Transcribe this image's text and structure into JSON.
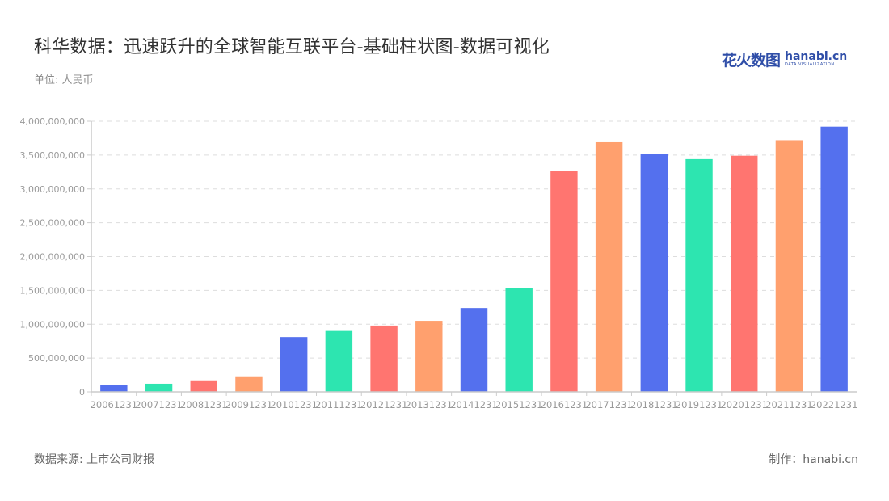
{
  "header": {
    "title": "科华数据：迅速跃升的全球智能互联平台-基础柱状图-数据可视化",
    "unit": "单位: 人民币",
    "logo_cn": "花火数图",
    "logo_en": "hanabi.cn",
    "logo_sub": "DATA VISUALIZATION"
  },
  "footer": {
    "source": "数据来源: 上市公司财报",
    "credit": "制作：hanabi.cn"
  },
  "colors": {
    "palette": [
      "#5470ee",
      "#2de5b0",
      "#ff7570",
      "#ffa06e"
    ],
    "axis": "#cccccc",
    "grid": "#dddddd",
    "tick_label": "#999999"
  },
  "chart_data": {
    "type": "bar",
    "title": "科华数据：迅速跃升的全球智能互联平台-基础柱状图-数据可视化",
    "xlabel": "",
    "ylabel": "单位: 人民币",
    "ylim": [
      0,
      4000000000
    ],
    "yticks": [
      "0",
      "500,000,000",
      "1,000,000,000",
      "1,500,000,000",
      "2,000,000,000",
      "2,500,000,000",
      "3,000,000,000",
      "3,500,000,000",
      "4,000,000,000"
    ],
    "grid": true,
    "legend": null,
    "categories": [
      "20061231",
      "20071231",
      "20081231",
      "20091231",
      "20101231",
      "20111231",
      "20121231",
      "20131231",
      "20141231",
      "20151231",
      "20161231",
      "20171231",
      "20181231",
      "20191231",
      "20201231",
      "20211231",
      "20221231"
    ],
    "values": [
      100000000,
      120000000,
      170000000,
      230000000,
      810000000,
      900000000,
      980000000,
      1050000000,
      1240000000,
      1530000000,
      3260000000,
      3690000000,
      3520000000,
      3440000000,
      3490000000,
      3720000000,
      3920000000
    ]
  }
}
